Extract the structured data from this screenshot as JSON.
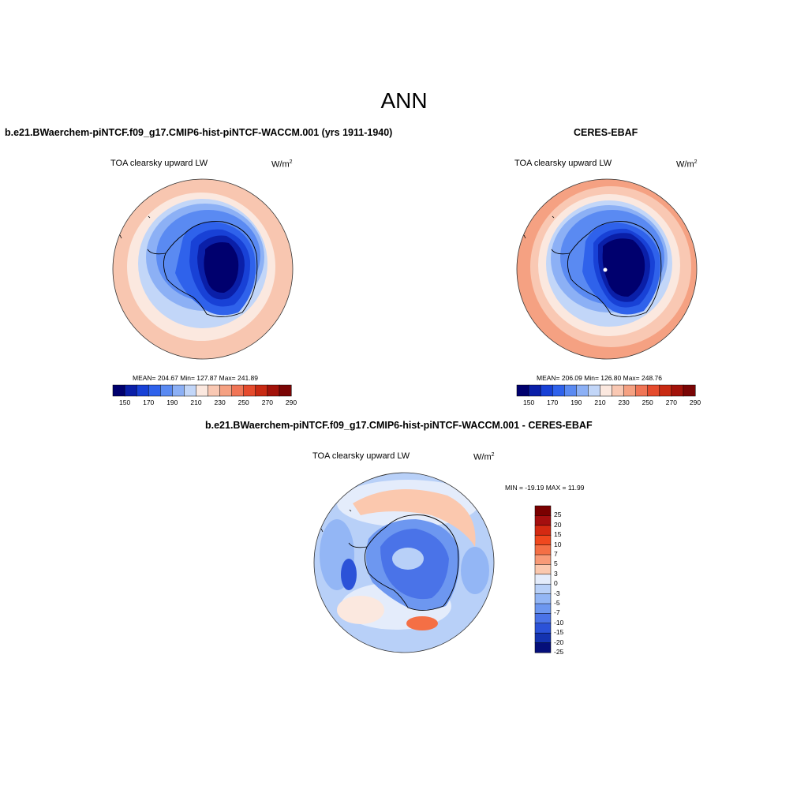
{
  "figure_title": "ANN",
  "panels": [
    {
      "title": "b.e21.BWaerchem-piNTCF.f09_g17.CMIP6-hist-piNTCF-WACCM.001 (yrs 1911-1940)",
      "variable": "TOA clearsky upward LW",
      "units": "W/m",
      "units_exp": "2",
      "stats": "MEAN= 204.67  Min= 127.87  Max= 241.89",
      "colorbar_ticks": [
        "150",
        "170",
        "190",
        "210",
        "230",
        "250",
        "270",
        "290"
      ]
    },
    {
      "title": "CERES-EBAF",
      "variable": "TOA clearsky upward LW",
      "units": "W/m",
      "units_exp": "2",
      "stats": "MEAN= 206.09  Min= 126.80  Max= 248.76",
      "colorbar_ticks": [
        "150",
        "170",
        "190",
        "210",
        "230",
        "250",
        "270",
        "290"
      ]
    },
    {
      "title": "b.e21.BWaerchem-piNTCF.f09_g17.CMIP6-hist-piNTCF-WACCM.001 - CERES-EBAF",
      "variable": "TOA clearsky upward LW",
      "units": "W/m",
      "units_exp": "2",
      "stats": "MIN = -19.19 MAX =  11.99",
      "colorbar_ticks": [
        "25",
        "20",
        "15",
        "10",
        "7",
        "5",
        "3",
        "0",
        "-3",
        "-5",
        "-7",
        "-10",
        "-15",
        "-20",
        "-25"
      ]
    }
  ],
  "colors": {
    "abs_scale": [
      "#00006e",
      "#0a1fa8",
      "#1841d6",
      "#2f62eb",
      "#5a8af2",
      "#8cb0f5",
      "#c2d6f8",
      "#fbe8df",
      "#f9c8b3",
      "#f5a182",
      "#f07556",
      "#e54b2d",
      "#c82a13",
      "#a2120a",
      "#7a0505"
    ],
    "diff_scale": [
      "#7a0000",
      "#a50f0f",
      "#d42a12",
      "#f0481e",
      "#f46f45",
      "#f89a77",
      "#fbc8ae",
      "#e4ecfb",
      "#b8d0f8",
      "#93b6f5",
      "#6d97f0",
      "#4a73e8",
      "#2b52d8",
      "#1433b0",
      "#050f7a"
    ],
    "land_outline": "#000000"
  }
}
